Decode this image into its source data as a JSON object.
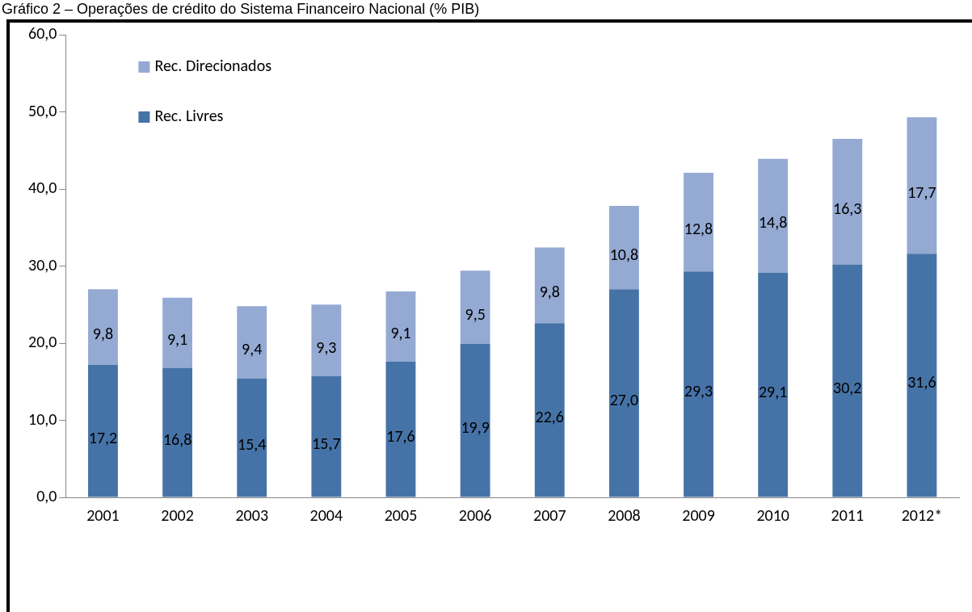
{
  "chart_data": {
    "type": "bar",
    "title": "Gráfico 2 – Operações de crédito do Sistema Financeiro Nacional (% PIB)",
    "stacked": true,
    "legend": "top left",
    "grid": false,
    "categories": [
      "2001",
      "2002",
      "2003",
      "2004",
      "2005",
      "2006",
      "2007",
      "2008",
      "2009",
      "2010",
      "2011",
      "2012*"
    ],
    "ylim": [
      0,
      60
    ],
    "yticks": [
      {
        "value": 0,
        "label": "0,0"
      },
      {
        "value": 10,
        "label": "10,0"
      },
      {
        "value": 20,
        "label": "20,0"
      },
      {
        "value": 30,
        "label": "30,0"
      },
      {
        "value": 40,
        "label": "40,0"
      },
      {
        "value": 50,
        "label": "50,0"
      },
      {
        "value": 60,
        "label": "60,0"
      }
    ],
    "series": [
      {
        "name": "Rec. Livres",
        "color": "#4673a7",
        "values": [
          17.2,
          16.8,
          15.4,
          15.7,
          17.6,
          19.9,
          22.6,
          27.0,
          29.3,
          29.1,
          30.2,
          31.6
        ],
        "value_labels": [
          "17,2",
          "16,8",
          "15,4",
          "15,7",
          "17,6",
          "19,9",
          "22,6",
          "27,0",
          "29,3",
          "29,1",
          "30,2",
          "31,6"
        ]
      },
      {
        "name": "Rec. Direcionados",
        "color": "#94aad3",
        "values": [
          9.8,
          9.1,
          9.4,
          9.3,
          9.1,
          9.5,
          9.8,
          10.8,
          12.8,
          14.8,
          16.3,
          17.7
        ],
        "value_labels": [
          "9,8",
          "9,1",
          "9,4",
          "9,3",
          "9,1",
          "9,5",
          "9,8",
          "10,8",
          "12,8",
          "14,8",
          "16,3",
          "17,7"
        ]
      }
    ]
  }
}
